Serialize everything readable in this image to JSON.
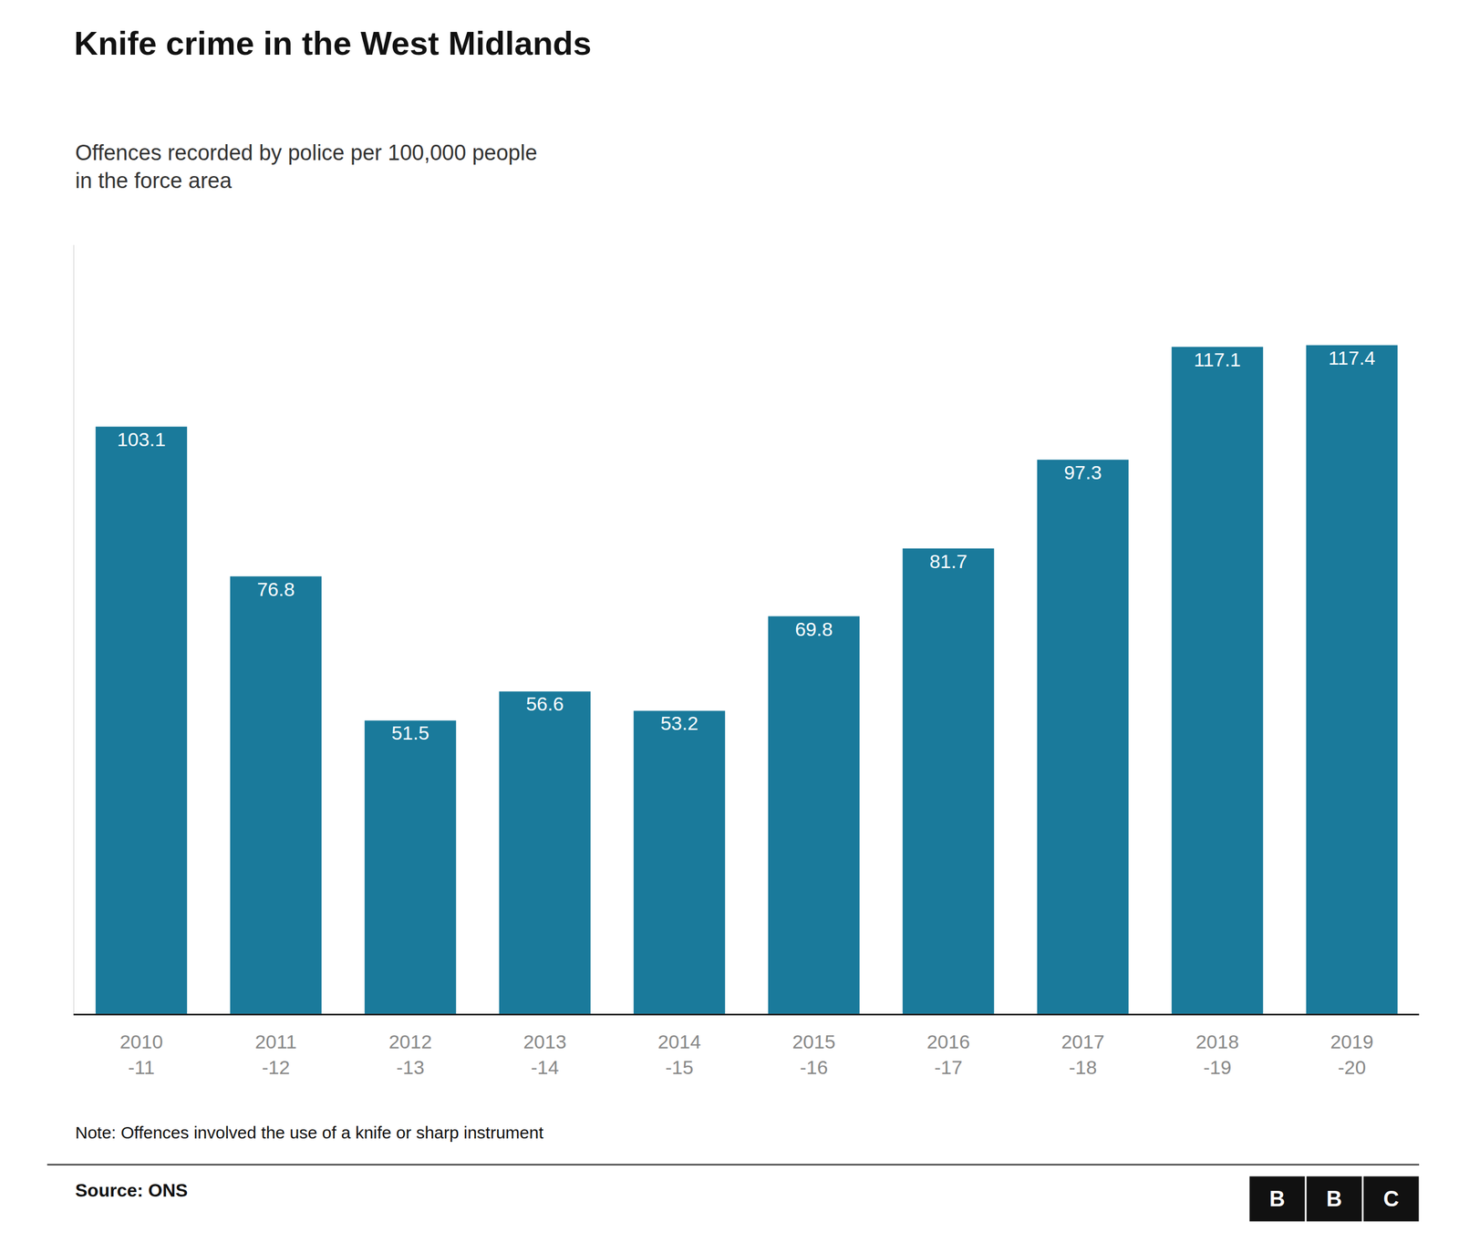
{
  "chart_data": {
    "type": "bar",
    "title": "Knife crime in the West Midlands",
    "subtitle": "Offences recorded by police per 100,000 people\nin the force area",
    "categories": [
      "2010\n-11",
      "2011\n-12",
      "2012\n-13",
      "2013\n-14",
      "2014\n-15",
      "2015\n-16",
      "2016\n-17",
      "2017\n-18",
      "2018\n-19",
      "2019\n-20"
    ],
    "values": [
      103.1,
      76.8,
      51.5,
      56.6,
      53.2,
      69.8,
      81.7,
      97.3,
      117.1,
      117.4
    ],
    "color": "#1a7a9b",
    "ylim": [
      0,
      135
    ],
    "grid": false,
    "data_labels": true,
    "tick_labels": "x",
    "annotations": [
      "Note: Offences involved the use of a knife or sharp instrument",
      "Source: ONS",
      "BBC"
    ]
  }
}
